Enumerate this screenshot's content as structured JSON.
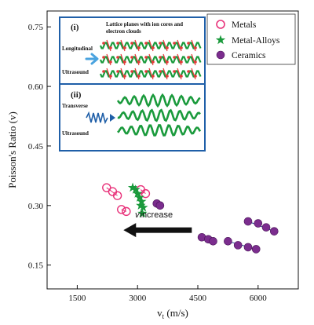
{
  "chart_data": {
    "type": "scatter",
    "xlabel": "v",
    "xlabel_sub": "t",
    "xlabel_unit": " (m/s)",
    "ylabel": "Poisson's Ratio (v)",
    "xlim": [
      750,
      7000
    ],
    "ylim": [
      0.09,
      0.79
    ],
    "xticks": [
      1500,
      3000,
      4500,
      6000
    ],
    "yticks": [
      0.15,
      0.3,
      0.45,
      0.6,
      0.75
    ],
    "xtick_labels": [
      "1500",
      "3000",
      "4500",
      "6000"
    ],
    "ytick_labels": [
      "0.15",
      "0.30",
      "0.45",
      "0.60",
      "0.75"
    ],
    "grid": false,
    "legend_position": "top-right",
    "series": [
      {
        "name": "Metals",
        "marker": "open-circle",
        "color": "#e8327a",
        "points": [
          [
            2230,
            0.345
          ],
          [
            2380,
            0.335
          ],
          [
            2500,
            0.325
          ],
          [
            2600,
            0.29
          ],
          [
            2720,
            0.285
          ],
          [
            3080,
            0.34
          ],
          [
            3200,
            0.33
          ]
        ],
        "segments": [
          [
            [
              2230,
              0.345
            ],
            [
              2500,
              0.325
            ]
          ],
          [
            [
              2600,
              0.29
            ],
            [
              2720,
              0.285
            ]
          ],
          [
            [
              3080,
              0.34
            ],
            [
              3200,
              0.33
            ]
          ]
        ]
      },
      {
        "name": "Metal-Alloys",
        "marker": "star",
        "color": "#1a9a3c",
        "points": [
          [
            2880,
            0.345
          ],
          [
            2950,
            0.34
          ],
          [
            3000,
            0.33
          ],
          [
            3050,
            0.32
          ],
          [
            3100,
            0.31
          ],
          [
            3080,
            0.3
          ],
          [
            3140,
            0.295
          ],
          [
            3120,
            0.28
          ]
        ]
      },
      {
        "name": "Ceramics",
        "marker": "filled-circle",
        "color": "#7b2d8e",
        "points": [
          [
            3480,
            0.305
          ],
          [
            3560,
            0.3
          ],
          [
            4600,
            0.22
          ],
          [
            4760,
            0.215
          ],
          [
            4880,
            0.21
          ],
          [
            5250,
            0.21
          ],
          [
            5500,
            0.2
          ],
          [
            5750,
            0.195
          ],
          [
            5950,
            0.19
          ],
          [
            5750,
            0.26
          ],
          [
            6000,
            0.255
          ],
          [
            6200,
            0.245
          ],
          [
            6400,
            0.235
          ]
        ],
        "segments": [
          [
            [
              3480,
              0.305
            ],
            [
              3560,
              0.3
            ]
          ],
          [
            [
              4600,
              0.22
            ],
            [
              4880,
              0.21
            ]
          ],
          [
            [
              5250,
              0.21
            ],
            [
              5950,
              0.19
            ]
          ],
          [
            [
              5750,
              0.26
            ],
            [
              6400,
              0.235
            ]
          ]
        ]
      }
    ],
    "annotations": {
      "increase_text": "increase",
      "increase_symbol": "v",
      "arrow": {
        "from": [
          4350,
          0.238
        ],
        "to": [
          2650,
          0.238
        ],
        "color": "#111111"
      }
    },
    "inset": {
      "panel1_tag": "(i)",
      "panel1_title_line1": "Lattice planes with ion cores and",
      "panel1_title_line2": "electron clouds",
      "panel1_label_top": "Longitudinal",
      "panel1_label_bottom": "Ultrasound",
      "panel2_tag": "(ii)",
      "panel2_label_top": "Transverse",
      "panel2_label_bottom": "Ultrasound",
      "frame_color": "#1f5fa8",
      "wave_color": "#1a9a3c",
      "core_color": "#e63a3a",
      "arrow_color": "#4aa3df"
    }
  }
}
